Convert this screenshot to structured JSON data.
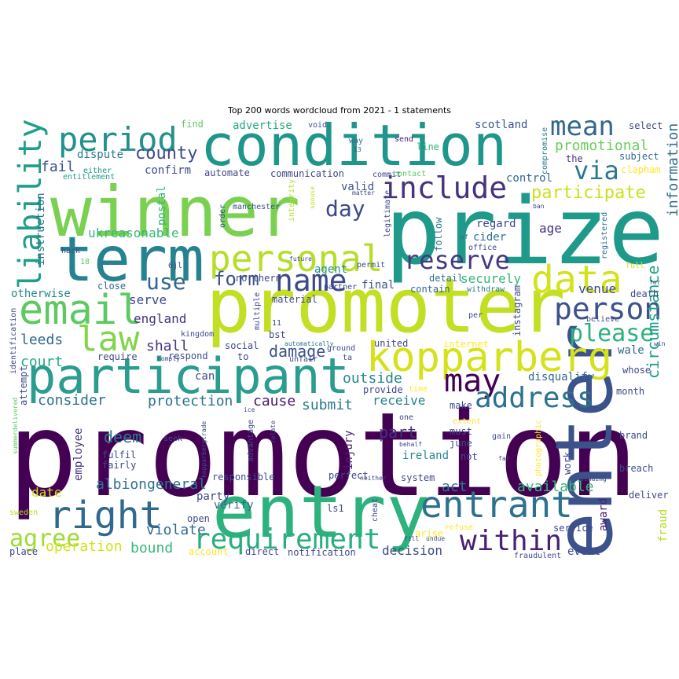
{
  "chart_data": {
    "type": "wordcloud",
    "title": "Top 200 words wordcloud from 2021 - 1 statements",
    "colormap": "viridis",
    "words": [
      {
        "text": "promotion",
        "color": "#440154"
      },
      {
        "text": "promoter",
        "color": "#c2df23"
      },
      {
        "text": "prize",
        "color": "#1f9a8a"
      },
      {
        "text": "entry",
        "color": "#2db27d"
      },
      {
        "text": "winner",
        "color": "#7ad151"
      },
      {
        "text": "enter",
        "color": "#3b528b"
      },
      {
        "text": "condition",
        "color": "#1f968b"
      },
      {
        "text": "participant",
        "color": "#2a9d8f"
      },
      {
        "text": "term",
        "color": "#26828e"
      },
      {
        "text": "kopparberg",
        "color": "#d5e21a"
      },
      {
        "text": "email",
        "color": "#5ec962"
      },
      {
        "text": "personal",
        "color": "#b5de2b"
      },
      {
        "text": "data",
        "color": "#d2e21b"
      },
      {
        "text": "entrant",
        "color": "#2c728e"
      },
      {
        "text": "right",
        "color": "#31688e"
      },
      {
        "text": "within",
        "color": "#482173"
      },
      {
        "text": "requirement",
        "color": "#29af7f"
      },
      {
        "text": "may",
        "color": "#440154"
      },
      {
        "text": "include",
        "color": "#46327e"
      },
      {
        "text": "period",
        "color": "#21918c"
      },
      {
        "text": "law",
        "color": "#84d44b"
      },
      {
        "text": "name",
        "color": "#3e4989"
      },
      {
        "text": "person",
        "color": "#3b528b"
      },
      {
        "text": "address",
        "color": "#2c728e"
      },
      {
        "text": "liability",
        "color": "#1f9e89"
      },
      {
        "text": "mean",
        "color": "#31688e"
      },
      {
        "text": "via",
        "color": "#2a788e"
      },
      {
        "text": "reserve",
        "color": "#443983"
      },
      {
        "text": "agree",
        "color": "#a0da39"
      },
      {
        "text": "please",
        "color": "#2db27d"
      },
      {
        "text": "day",
        "color": "#3e4989"
      },
      {
        "text": "use",
        "color": "#31688e"
      },
      {
        "text": "form",
        "color": "#3b528b"
      },
      {
        "text": "participate",
        "color": "#cae11f"
      },
      {
        "text": "county",
        "color": "#3e4989"
      },
      {
        "text": "promotional",
        "color": "#6ccd5a"
      },
      {
        "text": "information",
        "color": "#2e6e8e"
      },
      {
        "text": "circumstance",
        "color": "#1fa187"
      },
      {
        "text": "damage",
        "color": "#3b528b"
      },
      {
        "text": "protection",
        "color": "#2c728e"
      },
      {
        "text": "consider",
        "color": "#2c728e"
      },
      {
        "text": "submit",
        "color": "#2a788e"
      },
      {
        "text": "cause",
        "color": "#48186a"
      },
      {
        "text": "outside",
        "color": "#23898e"
      },
      {
        "text": "securely",
        "color": "#35b779"
      },
      {
        "text": "part",
        "color": "#46327e"
      },
      {
        "text": "deem",
        "color": "#2a788e"
      },
      {
        "text": "act",
        "color": "#2a788e"
      },
      {
        "text": "available",
        "color": "#35b779"
      },
      {
        "text": "albiongeneral",
        "color": "#2c728e"
      },
      {
        "text": "ukreasonable",
        "color": "#35b779"
      },
      {
        "text": "england",
        "color": "#46327e"
      },
      {
        "text": "serve",
        "color": "#3e4989"
      },
      {
        "text": "shall",
        "color": "#46327e"
      },
      {
        "text": "leeds",
        "color": "#31688e"
      },
      {
        "text": "court",
        "color": "#22a884"
      },
      {
        "text": "otherwise",
        "color": "#23898e"
      },
      {
        "text": "receive",
        "color": "#26828e"
      },
      {
        "text": "fail",
        "color": "#3b528b"
      },
      {
        "text": "confirm",
        "color": "#3e4989"
      },
      {
        "text": "valid",
        "color": "#3b528b"
      },
      {
        "text": "agent",
        "color": "#21918c"
      },
      {
        "text": "age",
        "color": "#46327e"
      },
      {
        "text": "cider",
        "color": "#2c728e"
      },
      {
        "text": "regard",
        "color": "#3e4989"
      },
      {
        "text": "venue",
        "color": "#3e4989"
      },
      {
        "text": "wale",
        "color": "#31688e"
      },
      {
        "text": "disqualify",
        "color": "#31688e"
      },
      {
        "text": "final",
        "color": "#3b528b"
      },
      {
        "text": "control",
        "color": "#31688e"
      },
      {
        "text": "advertise",
        "color": "#22a884"
      },
      {
        "text": "dispute",
        "color": "#2a788e"
      },
      {
        "text": "instruction",
        "color": "#2c728e"
      },
      {
        "text": "postal",
        "color": "#35b779"
      },
      {
        "text": "employee",
        "color": "#46327e"
      },
      {
        "text": "injury",
        "color": "#482173"
      },
      {
        "text": "ireland",
        "color": "#23898e"
      },
      {
        "text": "award",
        "color": "#482173"
      },
      {
        "text": "verify",
        "color": "#31688e"
      },
      {
        "text": "party",
        "color": "#3e4989"
      },
      {
        "text": "date",
        "color": "#d2e21b"
      },
      {
        "text": "violate",
        "color": "#31688e"
      },
      {
        "text": "operation",
        "color": "#d2e21b"
      },
      {
        "text": "bound",
        "color": "#35b779"
      },
      {
        "text": "decision",
        "color": "#3e4989"
      },
      {
        "text": "event",
        "color": "#3e4989"
      },
      {
        "text": "fraud",
        "color": "#b5de2b"
      },
      {
        "text": "scotland",
        "color": "#3b528b"
      },
      {
        "text": "select",
        "color": "#3e4989"
      },
      {
        "text": "subject",
        "color": "#31688e"
      },
      {
        "text": "the",
        "color": "#46327e"
      },
      {
        "text": "clapham",
        "color": "#fde725"
      },
      {
        "text": "find",
        "color": "#5ec962"
      },
      {
        "text": "void",
        "color": "#3b528b"
      },
      {
        "text": "communication",
        "color": "#3e4989"
      },
      {
        "text": "commit",
        "color": "#3e4989"
      },
      {
        "text": "line",
        "color": "#2db27d"
      },
      {
        "text": "contact",
        "color": "#5ec962"
      },
      {
        "text": "send",
        "color": "#482173"
      },
      {
        "text": "compromise",
        "color": "#2a788e"
      },
      {
        "text": "either",
        "color": "#21918c"
      },
      {
        "text": "entitlement",
        "color": "#1fa187"
      },
      {
        "text": "automate",
        "color": "#3e4989"
      },
      {
        "text": "manchester",
        "color": "#3b528b"
      },
      {
        "text": "integrity",
        "color": "#b5de2b"
      },
      {
        "text": "legitimate",
        "color": "#3e4989"
      },
      {
        "text": "follow",
        "color": "#2a788e"
      },
      {
        "text": "registered",
        "color": "#2c728e"
      },
      {
        "text": "ban",
        "color": "#3e4989"
      },
      {
        "text": "hack",
        "color": "#3e4989"
      },
      {
        "text": "order",
        "color": "#3e4989"
      },
      {
        "text": "spouse",
        "color": "#c2df23"
      },
      {
        "text": "matter",
        "color": "#3e4989"
      },
      {
        "text": "way",
        "color": "#31688e"
      },
      {
        "text": "13",
        "color": "#3b528b"
      },
      {
        "text": "office",
        "color": "#3e4989"
      },
      {
        "text": "of",
        "color": "#31688e"
      },
      {
        "text": "18",
        "color": "#5ec962"
      },
      {
        "text": "6jl",
        "color": "#3e4989"
      },
      {
        "text": "future",
        "color": "#3e4989"
      },
      {
        "text": "permit",
        "color": "#3e4989"
      },
      {
        "text": "full",
        "color": "#d2e21b"
      },
      {
        "text": "close",
        "color": "#31688e"
      },
      {
        "text": "northern",
        "color": "#3e4989"
      },
      {
        "text": "material",
        "color": "#3e4989"
      },
      {
        "text": "partner",
        "color": "#3e4989"
      },
      {
        "text": "detail",
        "color": "#2c728e"
      },
      {
        "text": "contain",
        "color": "#31688e"
      },
      {
        "text": "withdraw",
        "color": "#2a788e"
      },
      {
        "text": "death",
        "color": "#3e4989"
      },
      {
        "text": "kingdom",
        "color": "#3e4989"
      },
      {
        "text": "multiple",
        "color": "#3e4989"
      },
      {
        "text": "11",
        "color": "#3e4989"
      },
      {
        "text": "bst",
        "color": "#3e4989"
      },
      {
        "text": "instagram",
        "color": "#3e4989"
      },
      {
        "text": "per",
        "color": "#3e4989"
      },
      {
        "text": "social",
        "color": "#3e4989"
      },
      {
        "text": "automatically",
        "color": "#2c728e"
      },
      {
        "text": "unfair",
        "color": "#3e4989"
      },
      {
        "text": "ground",
        "color": "#3e4989"
      },
      {
        "text": "united",
        "color": "#3e4989"
      },
      {
        "text": "internet",
        "color": "#fde725"
      },
      {
        "text": "identification",
        "color": "#3e4989"
      },
      {
        "text": "attempt",
        "color": "#3e4989"
      },
      {
        "text": "require",
        "color": "#3e4989"
      },
      {
        "text": "respond",
        "color": "#3e4989"
      },
      {
        "text": "to",
        "color": "#3e4989"
      },
      {
        "text": "ta",
        "color": "#3e4989"
      },
      {
        "text": "believe",
        "color": "#3e4989"
      },
      {
        "text": "win",
        "color": "#3e4989"
      },
      {
        "text": "comply",
        "color": "#3e4989"
      },
      {
        "text": "can",
        "color": "#3e4989"
      },
      {
        "text": "whose",
        "color": "#3e4989"
      },
      {
        "text": "month",
        "color": "#3e4989"
      },
      {
        "text": "provide",
        "color": "#3e4989"
      },
      {
        "text": "time",
        "color": "#fde725"
      },
      {
        "text": "make",
        "color": "#3e4989"
      },
      {
        "text": "extent",
        "color": "#fde725"
      },
      {
        "text": "summerdelivered",
        "color": "#5ec962"
      },
      {
        "text": "ice",
        "color": "#3e4989"
      },
      {
        "text": "one",
        "color": "#3e4989"
      },
      {
        "text": "seek",
        "color": "#3e4989"
      },
      {
        "text": "kopparbergtrade",
        "color": "#3e4989"
      },
      {
        "text": "advantage",
        "color": "#3e4989"
      },
      {
        "text": "relate",
        "color": "#3e4989"
      },
      {
        "text": "behalf",
        "color": "#3e4989"
      },
      {
        "text": "gain",
        "color": "#3e4989"
      },
      {
        "text": "photographic",
        "color": "#fde725"
      },
      {
        "text": "brand",
        "color": "#3e4989"
      },
      {
        "text": "must",
        "color": "#3e4989"
      },
      {
        "text": "june",
        "color": "#3e4989"
      },
      {
        "text": "work",
        "color": "#3e4989"
      },
      {
        "text": "fulfil",
        "color": "#3e4989"
      },
      {
        "text": "fairly",
        "color": "#3e4989"
      },
      {
        "text": "responsible",
        "color": "#3e4989"
      },
      {
        "text": "perfect",
        "color": "#3e4989"
      },
      {
        "text": "neither",
        "color": "#3e4989"
      },
      {
        "text": "system",
        "color": "#3e4989"
      },
      {
        "text": "not",
        "color": "#3e4989"
      },
      {
        "text": "far",
        "color": "#3e4989"
      },
      {
        "text": "binding",
        "color": "#3e4989"
      },
      {
        "text": "breach",
        "color": "#3e4989"
      },
      {
        "text": "deliver",
        "color": "#3e4989"
      },
      {
        "text": "sweden",
        "color": "#b5de2b"
      },
      {
        "text": "open",
        "color": "#3e4989"
      },
      {
        "text": "ls1",
        "color": "#3e4989"
      },
      {
        "text": "cheat",
        "color": "#3e4989"
      },
      {
        "text": "arise",
        "color": "#fde725"
      },
      {
        "text": "refuse",
        "color": "#fde725"
      },
      {
        "text": "service",
        "color": "#3e4989"
      },
      {
        "text": "fill",
        "color": "#3e4989"
      },
      {
        "text": "undue",
        "color": "#3e4989"
      },
      {
        "text": "fraudulent",
        "color": "#3e4989"
      },
      {
        "text": "place",
        "color": "#3e4989"
      },
      {
        "text": "account",
        "color": "#fde725"
      },
      {
        "text": "direct",
        "color": "#3e4989"
      },
      {
        "text": "notification",
        "color": "#3e4989"
      },
      {
        "text": "for",
        "color": "#3e4989"
      }
    ]
  }
}
